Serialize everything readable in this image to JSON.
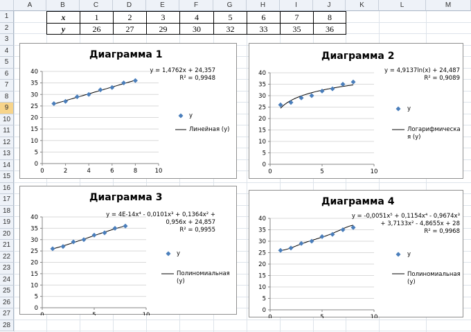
{
  "spreadsheet": {
    "columns": [
      "A",
      "B",
      "C",
      "D",
      "E",
      "F",
      "G",
      "H",
      "I",
      "J",
      "K",
      "L",
      "M"
    ],
    "rows": [
      "1",
      "2",
      "3",
      "4",
      "5",
      "6",
      "7",
      "8",
      "9",
      "10",
      "11",
      "12",
      "13",
      "14",
      "15",
      "16",
      "17",
      "18",
      "19",
      "20",
      "21",
      "22",
      "23",
      "24",
      "25",
      "26",
      "27",
      "28"
    ],
    "selected_row": "9",
    "table": {
      "row1_label": "x",
      "row1_values": [
        "1",
        "2",
        "3",
        "4",
        "5",
        "6",
        "7",
        "8"
      ],
      "row2_label": "y",
      "row2_values": [
        "26",
        "27",
        "29",
        "30",
        "32",
        "33",
        "35",
        "36"
      ]
    }
  },
  "colors": {
    "marker": "#4a7ebb",
    "trend": "#000000",
    "grid": "#d9d9d9",
    "axis": "#868686"
  },
  "chart_data": [
    {
      "type": "scatter",
      "title": "Диаграмма 1",
      "x": [
        1,
        2,
        3,
        4,
        5,
        6,
        7,
        8
      ],
      "y": [
        26,
        27,
        29,
        30,
        32,
        33,
        35,
        36
      ],
      "xlim": [
        0,
        10
      ],
      "ylim": [
        0,
        40
      ],
      "xticks": [
        "0",
        "2",
        "4",
        "6",
        "8",
        "10"
      ],
      "yticks": [
        "0",
        "5",
        "10",
        "15",
        "20",
        "25",
        "30",
        "35",
        "40"
      ],
      "series_name": "y",
      "trend_name": "Линейная (y)",
      "trend_kind": "linear",
      "coef": [
        24.357,
        1.4762
      ],
      "equation": [
        "y = 1,4762x + 24,357",
        "R² = 0,9948"
      ],
      "legend": "right"
    },
    {
      "type": "scatter",
      "title": "Диаграмма 2",
      "x": [
        1,
        2,
        3,
        4,
        5,
        6,
        7,
        8
      ],
      "y": [
        26,
        27,
        29,
        30,
        32,
        33,
        35,
        36
      ],
      "xlim": [
        0,
        10
      ],
      "ylim": [
        0,
        40
      ],
      "xticks": [
        "0",
        "5",
        "10"
      ],
      "yticks": [
        "0",
        "5",
        "10",
        "15",
        "20",
        "25",
        "30",
        "35",
        "40"
      ],
      "series_name": "y",
      "trend_name": "Логарифмическа я (y)",
      "trend_kind": "log",
      "coef": [
        24.487,
        4.9137
      ],
      "equation": [
        "y = 4,9137ln(x) + 24,487",
        "R² = 0,9089"
      ],
      "legend": "right"
    },
    {
      "type": "scatter",
      "title": "Диаграмма 3",
      "x": [
        1,
        2,
        3,
        4,
        5,
        6,
        7,
        8
      ],
      "y": [
        26,
        27,
        29,
        30,
        32,
        33,
        35,
        36
      ],
      "xlim": [
        0,
        10
      ],
      "ylim": [
        0,
        40
      ],
      "xticks": [
        "0",
        "5",
        "10"
      ],
      "yticks": [
        "0",
        "5",
        "10",
        "15",
        "20",
        "25",
        "30",
        "35",
        "40"
      ],
      "series_name": "y",
      "trend_name": "Полиномиальная (y)",
      "trend_kind": "poly",
      "coef": [
        24.857,
        0.956,
        0.1364,
        -0.0101,
        4e-14
      ],
      "equation": [
        "y = 4E-14x⁴ - 0,0101x³ + 0,1364x² +",
        "0,956x + 24,857",
        "R² = 0,9955"
      ],
      "legend": "right"
    },
    {
      "type": "scatter",
      "title": "Диаграмма 4",
      "x": [
        1,
        2,
        3,
        4,
        5,
        6,
        7,
        8
      ],
      "y": [
        26,
        27,
        29,
        30,
        32,
        33,
        35,
        36
      ],
      "xlim": [
        0,
        10
      ],
      "ylim": [
        0,
        40
      ],
      "xticks": [
        "0",
        "5",
        "10"
      ],
      "yticks": [
        "0",
        "5",
        "10",
        "15",
        "20",
        "25",
        "30",
        "35",
        "40"
      ],
      "series_name": "y",
      "trend_name": "Полиномиальная (y)",
      "trend_kind": "poly",
      "coef": [
        28,
        -4.8655,
        3.7133,
        -0.9674,
        0.1154,
        -0.0051
      ],
      "equation": [
        "y = -0,0051x⁵ + 0,1154x⁴ - 0,9674x³",
        "+ 3,7133x² - 4,8655x + 28",
        "R² = 0,9968"
      ],
      "legend": "right"
    }
  ]
}
